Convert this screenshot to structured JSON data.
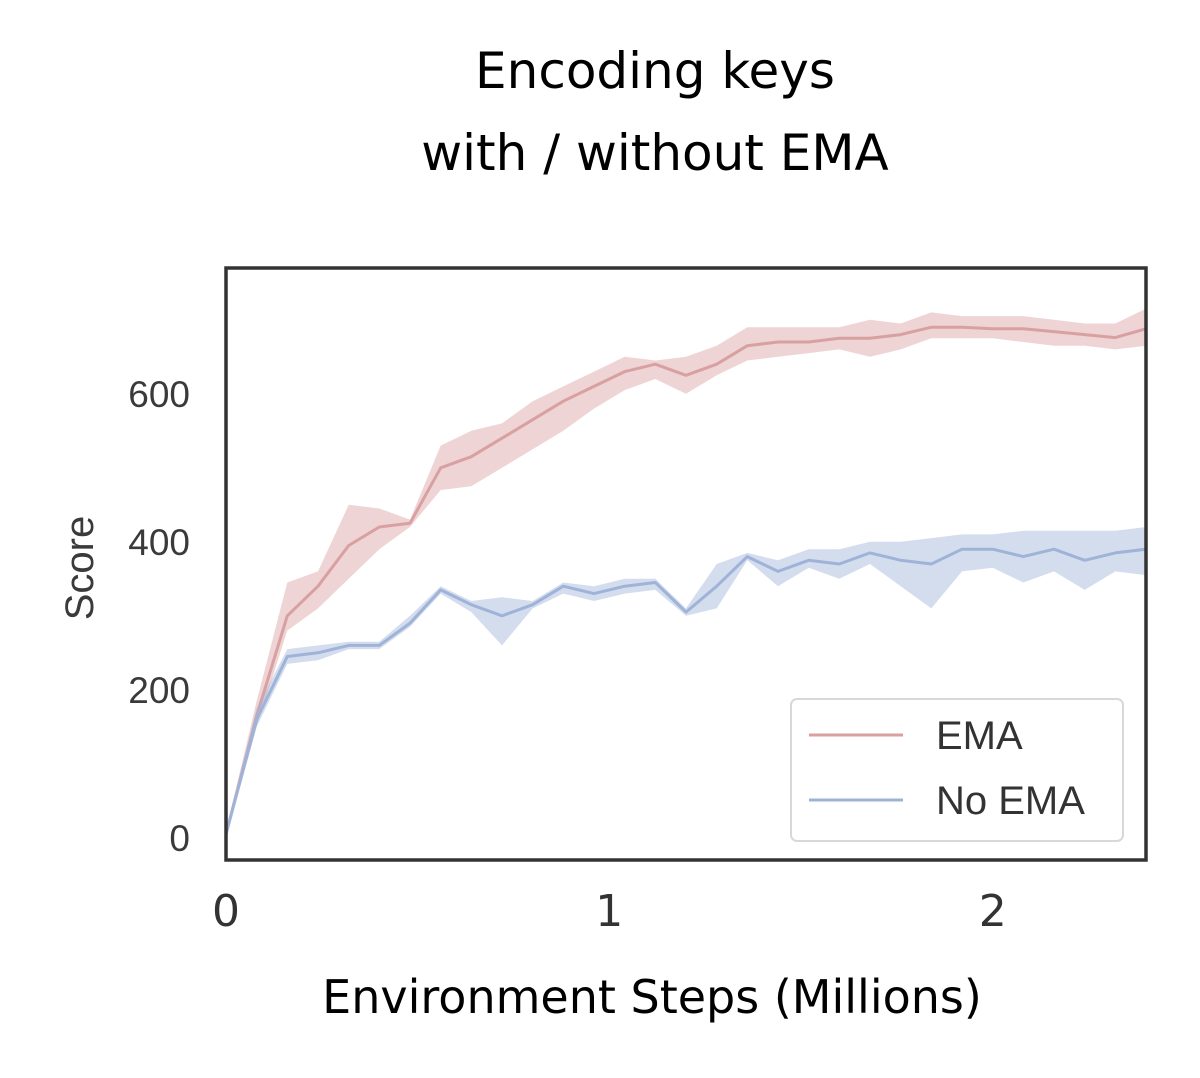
{
  "chart_data": {
    "type": "line",
    "title": [
      "Encoding keys",
      "with / without EMA"
    ],
    "xlabel": "Environment Steps (Millions)",
    "ylabel": "Score",
    "xlim": [
      0,
      2.4
    ],
    "ylim": [
      -30,
      770
    ],
    "xticks": [
      0,
      1,
      2
    ],
    "xtick_labels": [
      "0",
      "1",
      "2"
    ],
    "yticks": [
      0,
      200,
      400,
      600
    ],
    "ytick_labels": [
      "0",
      "200",
      "400",
      "600"
    ],
    "grid": false,
    "legend_position": "lower-right",
    "series": [
      {
        "name": "EMA",
        "color": "#d9a0a2",
        "x": [
          0,
          0.08,
          0.16,
          0.24,
          0.32,
          0.4,
          0.48,
          0.56,
          0.64,
          0.72,
          0.8,
          0.88,
          0.96,
          1.04,
          1.12,
          1.2,
          1.28,
          1.36,
          1.44,
          1.52,
          1.6,
          1.68,
          1.76,
          1.84,
          1.92,
          2.0,
          2.08,
          2.16,
          2.24,
          2.32,
          2.4
        ],
        "values": [
          5,
          165,
          300,
          340,
          395,
          420,
          425,
          500,
          515,
          540,
          565,
          590,
          610,
          630,
          640,
          625,
          640,
          665,
          670,
          670,
          675,
          675,
          680,
          690,
          690,
          688,
          688,
          684,
          680,
          676,
          688
        ],
        "lower": [
          0,
          150,
          280,
          310,
          350,
          390,
          420,
          470,
          475,
          500,
          525,
          550,
          580,
          605,
          620,
          600,
          625,
          645,
          650,
          655,
          660,
          650,
          660,
          675,
          675,
          675,
          670,
          665,
          665,
          660,
          665
        ],
        "upper": [
          10,
          185,
          345,
          360,
          450,
          445,
          430,
          530,
          550,
          560,
          590,
          610,
          630,
          650,
          645,
          650,
          665,
          690,
          690,
          690,
          690,
          700,
          695,
          710,
          705,
          705,
          705,
          700,
          695,
          695,
          715
        ]
      },
      {
        "name": "No EMA",
        "color": "#9fb3d9",
        "x": [
          0,
          0.08,
          0.16,
          0.24,
          0.32,
          0.4,
          0.48,
          0.56,
          0.64,
          0.72,
          0.8,
          0.88,
          0.96,
          1.04,
          1.12,
          1.2,
          1.28,
          1.36,
          1.44,
          1.52,
          1.6,
          1.68,
          1.76,
          1.84,
          1.92,
          2.0,
          2.08,
          2.16,
          2.24,
          2.32,
          2.4
        ],
        "values": [
          5,
          160,
          245,
          250,
          260,
          260,
          290,
          335,
          315,
          300,
          315,
          340,
          330,
          340,
          345,
          305,
          340,
          380,
          360,
          375,
          370,
          385,
          375,
          370,
          390,
          390,
          380,
          390,
          375,
          385,
          390
        ],
        "lower": [
          0,
          150,
          235,
          240,
          255,
          255,
          285,
          330,
          305,
          260,
          310,
          330,
          320,
          330,
          335,
          300,
          310,
          375,
          340,
          365,
          350,
          370,
          340,
          310,
          360,
          365,
          345,
          360,
          335,
          360,
          355
        ],
        "upper": [
          10,
          175,
          255,
          260,
          265,
          265,
          300,
          340,
          320,
          325,
          320,
          345,
          340,
          350,
          350,
          310,
          370,
          385,
          375,
          390,
          390,
          400,
          400,
          405,
          410,
          410,
          415,
          415,
          415,
          415,
          420
        ]
      }
    ]
  }
}
